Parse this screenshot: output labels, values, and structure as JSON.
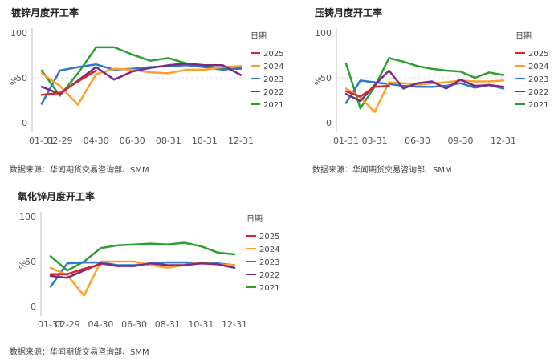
{
  "colors": {
    "2025": "#d62728",
    "2024": "#ff9f2e",
    "2023": "#2e78c7",
    "2022": "#7b2a86",
    "2021": "#2ca02c"
  },
  "chart_data": [
    {
      "type": "line",
      "title": "镀锌月度开工率",
      "source": "数据来源：华闻期货交易咨询部、SMM",
      "ylabel": "%",
      "xlabel": "",
      "ylim": [
        0,
        100
      ],
      "yticks": [
        0,
        50,
        100
      ],
      "xticks": [
        "01-31",
        "02-29",
        "04-30",
        "06-30",
        "08-31",
        "10-31",
        "12-31"
      ],
      "x": [
        "01-31",
        "02-29",
        "03-31",
        "04-30",
        "05-31",
        "06-30",
        "07-31",
        "08-31",
        "09-30",
        "10-31",
        "11-30",
        "12-31"
      ],
      "legend_title": "日期",
      "legend_position": "right",
      "series": [
        {
          "name": "2025",
          "values": [
            31,
            33,
            46,
            58,
            null,
            null,
            null,
            null,
            null,
            null,
            null,
            null
          ]
        },
        {
          "name": "2024",
          "values": [
            55,
            41,
            20,
            54,
            60,
            59,
            56,
            55,
            59,
            59,
            62,
            63
          ]
        },
        {
          "name": "2023",
          "values": [
            21,
            58,
            62,
            65,
            59,
            60,
            62,
            63,
            64,
            62,
            59,
            61
          ]
        },
        {
          "name": "2022",
          "values": [
            40,
            32,
            47,
            62,
            48,
            57,
            61,
            64,
            66,
            64,
            64,
            53
          ]
        },
        {
          "name": "2021",
          "values": [
            58,
            30,
            55,
            84,
            84,
            76,
            69,
            72,
            66,
            63,
            60,
            60
          ]
        }
      ]
    },
    {
      "type": "line",
      "title": "压铸月度开工率",
      "source": "数据来源：华闻期货交易咨询部、SMM",
      "ylabel": "%",
      "xlabel": "",
      "ylim": [
        0,
        100
      ],
      "yticks": [
        0,
        50,
        100
      ],
      "xticks": [
        "01-31",
        "03-31",
        "06-30",
        "09-30",
        "12-31"
      ],
      "x": [
        "01-31",
        "02-29",
        "03-31",
        "04-30",
        "05-31",
        "06-30",
        "07-31",
        "08-31",
        "09-30",
        "10-31",
        "11-30",
        "12-31"
      ],
      "legend_title": "日期",
      "legend_position": "right",
      "series": [
        {
          "name": "2025",
          "values": [
            35,
            29,
            40,
            41,
            null,
            null,
            null,
            null,
            null,
            null,
            null,
            null
          ]
        },
        {
          "name": "2024",
          "values": [
            38,
            28,
            12,
            45,
            44,
            42,
            44,
            45,
            47,
            46,
            46,
            47
          ]
        },
        {
          "name": "2023",
          "values": [
            22,
            47,
            45,
            43,
            41,
            40,
            40,
            41,
            44,
            39,
            42,
            38
          ]
        },
        {
          "name": "2022",
          "values": [
            32,
            24,
            42,
            58,
            38,
            44,
            46,
            38,
            48,
            41,
            42,
            40
          ]
        },
        {
          "name": "2021",
          "values": [
            66,
            16,
            40,
            72,
            68,
            63,
            60,
            58,
            57,
            50,
            56,
            53
          ]
        }
      ]
    },
    {
      "type": "line",
      "title": "氧化锌月度开工率",
      "source": "数据来源：华闻期货交易咨询部、SMM",
      "ylabel": "%",
      "xlabel": "",
      "ylim": [
        0,
        100
      ],
      "yticks": [
        0,
        50,
        100
      ],
      "xticks": [
        "01-31",
        "02-29",
        "04-30",
        "06-30",
        "08-31",
        "10-31",
        "12-31"
      ],
      "x": [
        "01-31",
        "02-29",
        "03-31",
        "04-30",
        "05-31",
        "06-30",
        "07-31",
        "08-31",
        "09-30",
        "10-31",
        "11-30",
        "12-31"
      ],
      "legend_title": "日期",
      "legend_position": "right",
      "series": [
        {
          "name": "2025",
          "values": [
            36,
            36,
            42,
            47,
            null,
            null,
            null,
            null,
            null,
            null,
            null,
            null
          ]
        },
        {
          "name": "2024",
          "values": [
            43,
            35,
            12,
            50,
            50,
            50,
            46,
            43,
            46,
            49,
            47,
            46
          ]
        },
        {
          "name": "2023",
          "values": [
            22,
            48,
            49,
            49,
            46,
            46,
            48,
            49,
            49,
            48,
            48,
            46
          ]
        },
        {
          "name": "2022",
          "values": [
            34,
            32,
            40,
            48,
            45,
            45,
            48,
            46,
            46,
            48,
            47,
            43
          ]
        },
        {
          "name": "2021",
          "values": [
            56,
            40,
            50,
            65,
            68,
            69,
            70,
            69,
            71,
            67,
            60,
            58
          ]
        }
      ]
    }
  ]
}
